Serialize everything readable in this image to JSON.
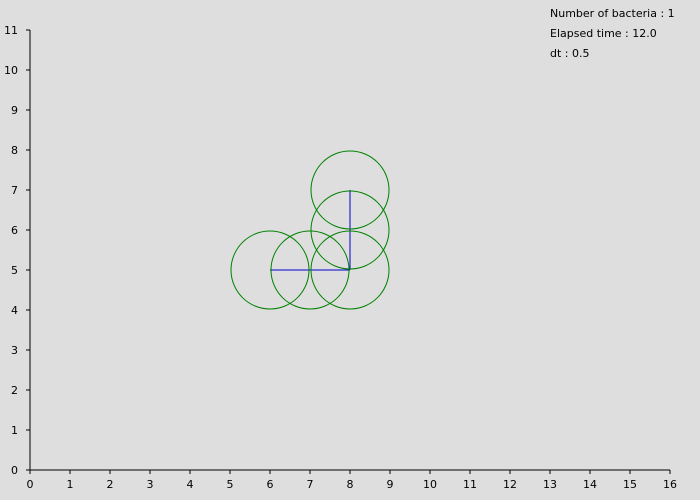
{
  "info": {
    "bacteria_label": "Number of bacteria",
    "bacteria_count": "1",
    "time_label": "Elapsed time",
    "time_value": "12.0",
    "dt_label": "dt",
    "dt_value": "0.5"
  },
  "chart_data": {
    "type": "scatter",
    "xlim": [
      0,
      16
    ],
    "ylim": [
      0,
      11
    ],
    "x_ticks": [
      "0",
      "1",
      "2",
      "3",
      "4",
      "5",
      "6",
      "7",
      "8",
      "9",
      "10",
      "11",
      "12",
      "13",
      "14",
      "15",
      "16"
    ],
    "y_ticks": [
      "0",
      "1",
      "2",
      "3",
      "4",
      "5",
      "6",
      "7",
      "8",
      "9",
      "10",
      "11"
    ],
    "grid": false,
    "circles": [
      {
        "x": 6,
        "y": 5,
        "r": 1
      },
      {
        "x": 7,
        "y": 5,
        "r": 1
      },
      {
        "x": 8,
        "y": 5,
        "r": 1
      },
      {
        "x": 8,
        "y": 6,
        "r": 1
      },
      {
        "x": 8,
        "y": 7,
        "r": 1
      }
    ],
    "links": [
      {
        "x1": 6,
        "y1": 5,
        "x2": 8,
        "y2": 5
      },
      {
        "x1": 8,
        "y1": 5,
        "x2": 8,
        "y2": 7
      }
    ],
    "colors": {
      "circle": "#008000",
      "link": "#0000cc",
      "axis": "#000000"
    }
  }
}
